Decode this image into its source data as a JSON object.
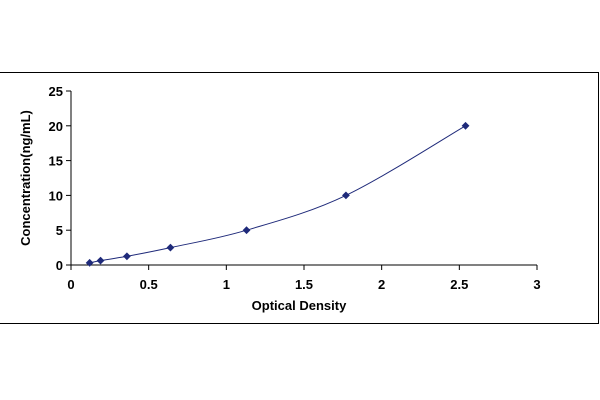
{
  "chart_data": {
    "type": "scatter",
    "title": "",
    "xlabel": "Optical Density",
    "ylabel": "Concentration(ng/mL)",
    "xlim": [
      0,
      3
    ],
    "ylim": [
      0,
      25
    ],
    "x_ticks": [
      "0",
      "0.5",
      "1",
      "1.5",
      "2",
      "2.5",
      "3"
    ],
    "y_ticks": [
      "0",
      "5",
      "10",
      "15",
      "20",
      "25"
    ],
    "grid": false,
    "legend": "none",
    "series": [
      {
        "x": [
          0.12,
          0.19,
          0.36,
          0.64,
          1.13,
          1.77,
          2.54
        ],
        "y": [
          0.31,
          0.63,
          1.25,
          2.5,
          5,
          10,
          20
        ],
        "marker": "diamond",
        "color": "#1f2a7a",
        "fit_line": "polynomial"
      }
    ]
  }
}
